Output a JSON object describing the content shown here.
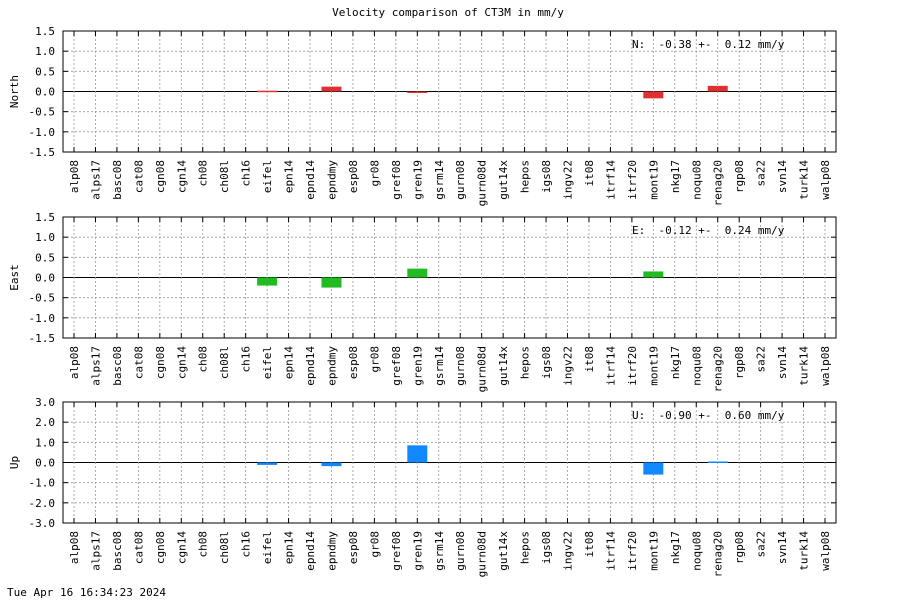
{
  "figure_title": "Velocity comparison of CT3M in mm/y",
  "footer_timestamp": "Tue Apr 16 16:34:23 2024",
  "chart_data": [
    {
      "type": "bar",
      "ylabel": "North",
      "annotation": "N:  -0.38 +-  0.12 mm/y",
      "ylim": [
        -1.5,
        1.5
      ],
      "yticks": [
        "1.5",
        "1.0",
        "0.5",
        "0.0",
        "-0.5",
        "-1.0",
        "-1.5"
      ],
      "ytick_values": [
        1.5,
        1.0,
        0.5,
        0.0,
        -0.5,
        -1.0,
        -1.5
      ],
      "grid": true,
      "color": "#e03030",
      "categories": [
        "alp08",
        "alps17",
        "basc08",
        "cat08",
        "cgn08",
        "cgn14",
        "ch08",
        "ch08l",
        "ch16",
        "eifel",
        "epn14",
        "epnd14",
        "epndmy",
        "esp08",
        "gr08",
        "gref08",
        "gren19",
        "gsrm14",
        "gurn08",
        "gurn08d",
        "gut14x",
        "hepos",
        "igs08",
        "ingv22",
        "it08",
        "itrf14",
        "itrf20",
        "mont19",
        "nkg17",
        "noqu08",
        "renag20",
        "rgp08",
        "sa22",
        "svn14",
        "turk14",
        "walp08"
      ],
      "values": [
        0,
        0,
        0,
        0,
        0,
        0,
        0,
        0,
        0,
        0.02,
        0,
        0,
        0.12,
        0,
        0,
        0,
        -0.03,
        0,
        0,
        0,
        0,
        0,
        0,
        0,
        0,
        0,
        0,
        -0.17,
        0,
        0,
        0.14,
        0,
        0,
        0,
        0,
        0
      ]
    },
    {
      "type": "bar",
      "ylabel": "East",
      "annotation": "E:  -0.12 +-  0.24 mm/y",
      "ylim": [
        -1.5,
        1.5
      ],
      "yticks": [
        "1.5",
        "1.0",
        "0.5",
        "0.0",
        "-0.5",
        "-1.0",
        "-1.5"
      ],
      "ytick_values": [
        1.5,
        1.0,
        0.5,
        0.0,
        -0.5,
        -1.0,
        -1.5
      ],
      "grid": true,
      "color": "#22bb22",
      "categories": [
        "alp08",
        "alps17",
        "basc08",
        "cat08",
        "cgn08",
        "cgn14",
        "ch08",
        "ch08l",
        "ch16",
        "eifel",
        "epn14",
        "epnd14",
        "epndmy",
        "esp08",
        "gr08",
        "gref08",
        "gren19",
        "gsrm14",
        "gurn08",
        "gurn08d",
        "gut14x",
        "hepos",
        "igs08",
        "ingv22",
        "it08",
        "itrf14",
        "itrf20",
        "mont19",
        "nkg17",
        "noqu08",
        "renag20",
        "rgp08",
        "sa22",
        "svn14",
        "turk14",
        "walp08"
      ],
      "values": [
        0,
        0,
        0,
        0,
        0,
        0,
        0,
        0,
        0,
        -0.2,
        0,
        0,
        -0.25,
        0,
        0,
        0,
        0.22,
        0,
        0,
        0,
        0,
        0,
        0,
        0,
        0,
        0,
        0,
        0.15,
        0,
        0,
        0,
        0,
        0,
        0,
        0,
        0
      ]
    },
    {
      "type": "bar",
      "ylabel": "Up",
      "annotation": "U:  -0.90 +-  0.60 mm/y",
      "ylim": [
        -3.0,
        3.0
      ],
      "yticks": [
        "3.0",
        "2.0",
        "1.0",
        "0.0",
        "-1.0",
        "-2.0",
        "-3.0"
      ],
      "ytick_values": [
        3.0,
        2.0,
        1.0,
        0.0,
        -1.0,
        -2.0,
        -3.0
      ],
      "grid": true,
      "color": "#1188ff",
      "categories": [
        "alp08",
        "alps17",
        "basc08",
        "cat08",
        "cgn08",
        "cgn14",
        "ch08",
        "ch08l",
        "ch16",
        "eifel",
        "epn14",
        "epnd14",
        "epndmy",
        "esp08",
        "gr08",
        "gref08",
        "gren19",
        "gsrm14",
        "gurn08",
        "gurn08d",
        "gut14x",
        "hepos",
        "igs08",
        "ingv22",
        "it08",
        "itrf14",
        "itrf20",
        "mont19",
        "nkg17",
        "noqu08",
        "renag20",
        "rgp08",
        "sa22",
        "svn14",
        "turk14",
        "walp08"
      ],
      "values": [
        0,
        0,
        0,
        0,
        0,
        0,
        0,
        0,
        0,
        -0.12,
        0,
        0,
        -0.18,
        0,
        0,
        0,
        0.85,
        0,
        0,
        0,
        0,
        0,
        0,
        0,
        0,
        0,
        0,
        -0.6,
        0,
        0,
        0.05,
        0,
        0,
        0,
        0,
        0
      ]
    }
  ]
}
